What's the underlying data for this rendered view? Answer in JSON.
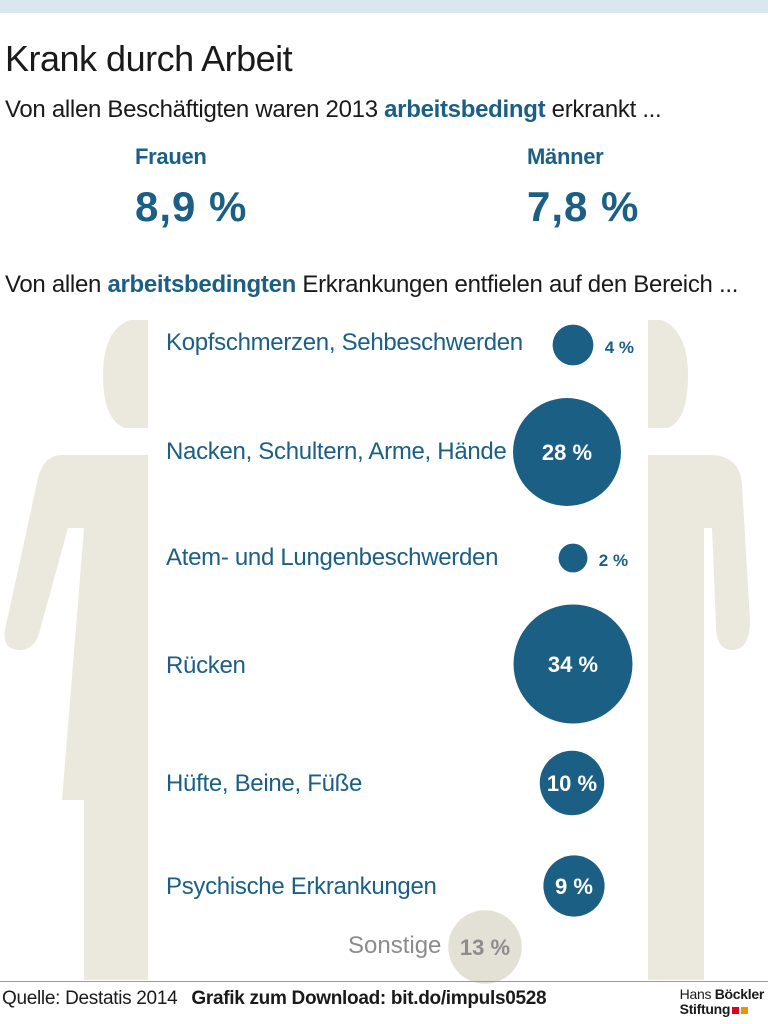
{
  "colors": {
    "accent": "#1b5f84",
    "figure": "#ebe8de",
    "topbar": "#d9e8f0",
    "sonstige_bubble": "#e3e0d6",
    "sonstige_text": "#8c8c8c",
    "logo_red": "#e2001a",
    "logo_orange": "#f39200"
  },
  "header": {
    "title": "Krank durch Arbeit",
    "line1": {
      "before": "Von allen Beschäftigten waren 2013 ",
      "highlight": "arbeitsbedingt",
      "after": " erkrankt ..."
    }
  },
  "gender_stats": {
    "women": {
      "label": "Frauen",
      "value": "8,9 %"
    },
    "men": {
      "label": "Männer",
      "value": "7,8 %"
    }
  },
  "section2": {
    "before": "Von allen ",
    "highlight": "arbeitsbedingten",
    "after": " Erkrankungen entfielen auf den Bereich ..."
  },
  "chart_data": {
    "type": "bubble",
    "title": "Von allen arbeitsbedingten Erkrankungen entfielen auf den Bereich ...",
    "unit": "%",
    "categories": [
      "Kopfschmerzen, Sehbeschwerden",
      "Nacken, Schultern, Arme, Hände",
      "Atem- und Lungenbeschwerden",
      "Rücken",
      "Hüfte, Beine, Füße",
      "Psychische Erkrankungen",
      "Sonstige"
    ],
    "values": [
      4,
      28,
      2,
      34,
      10,
      9,
      13
    ],
    "labels": [
      "4 %",
      "28 %",
      "2 %",
      "34 %",
      "10 %",
      "9 %",
      "13 %"
    ]
  },
  "footer": {
    "source": "Quelle: Destatis 2014",
    "download": "Grafik zum Download: bit.do/impuls0528"
  },
  "logo": {
    "line1_a": "Hans ",
    "line1_b": "Böckler",
    "line2": "Stiftung"
  }
}
